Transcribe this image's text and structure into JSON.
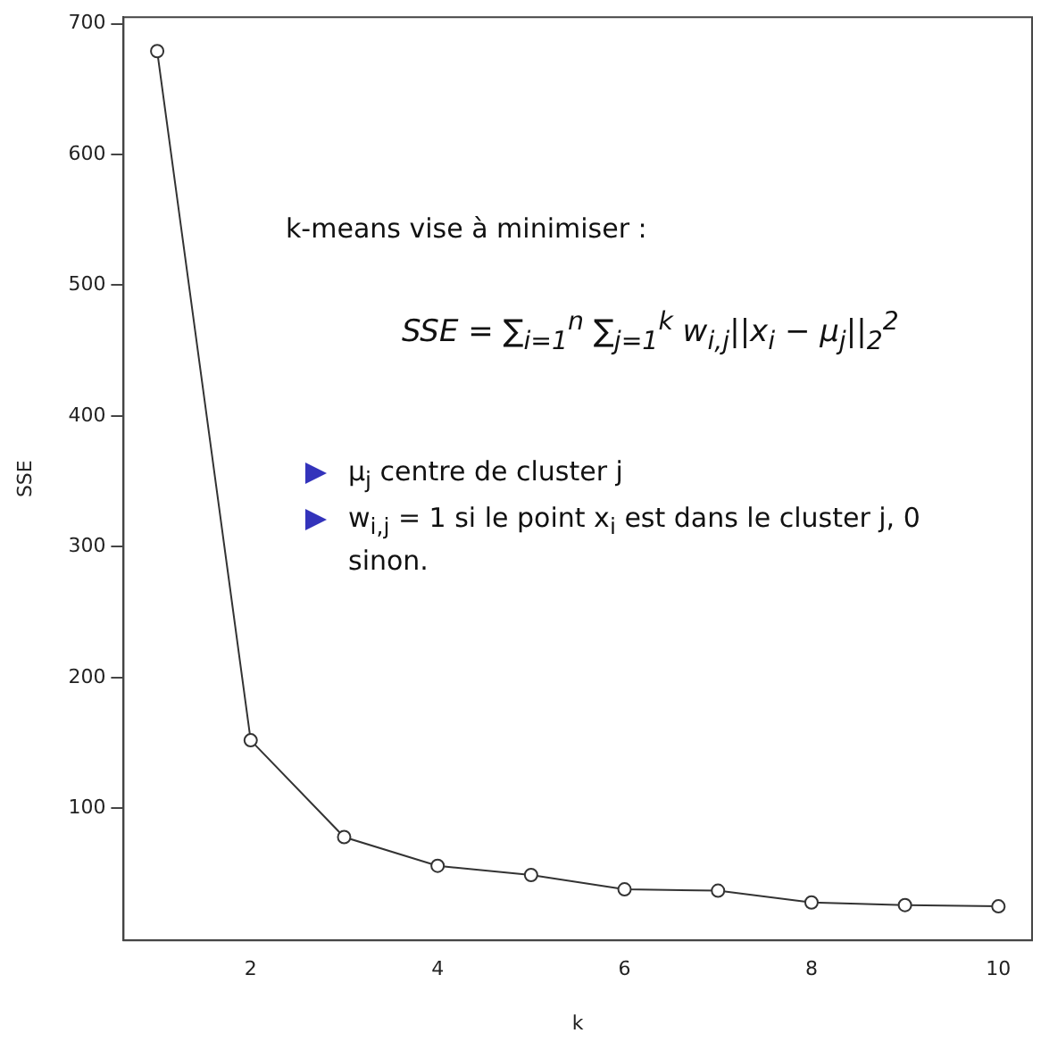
{
  "chart_data": {
    "type": "line",
    "xlabel": "k",
    "ylabel": "SSE",
    "x": [
      1,
      2,
      3,
      4,
      5,
      6,
      7,
      8,
      9,
      10
    ],
    "values": [
      679,
      152,
      78,
      56,
      49,
      38,
      37,
      28,
      26,
      25
    ],
    "color": "#333333",
    "marker": "circle",
    "grid": false,
    "legend": false,
    "xlim": [
      0.64,
      10.36
    ],
    "xticks": [
      2,
      4,
      6,
      8,
      10
    ],
    "ylim": [
      -1,
      705
    ],
    "yticks": [
      100,
      200,
      300,
      400,
      500,
      600,
      700
    ],
    "annotations": [
      "k-means vise à minimiser :",
      "SSE = ∑$_{i=1}$$^{n}$ ∑$_{j=1}$$^{k}$ w$_{i,j}$||x$_{i}$ − μ$_{j}$||$_{2}$$^{2}$",
      "μ$_{j}$ centre de cluster j",
      "w$_{i,j}$ = 1 si le point x$_{i}$ est dans le cluster j, 0 sinon."
    ]
  }
}
